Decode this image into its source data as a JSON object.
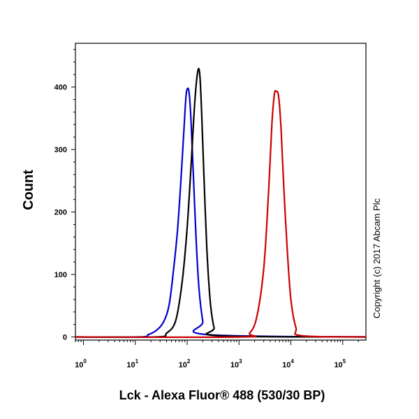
{
  "chart_data": {
    "type": "line",
    "title": "",
    "xlabel": "Lck - Alexa Fluor® 488 (530/30 BP)",
    "ylabel": "Count",
    "x_scale": "log",
    "xlim": [
      0.7,
      280000
    ],
    "ylim": [
      -5,
      470
    ],
    "grid": false,
    "legend": "none",
    "x_ticks": [
      {
        "base": "10",
        "exp": "0",
        "value": 1
      },
      {
        "base": "10",
        "exp": "1",
        "value": 10
      },
      {
        "base": "10",
        "exp": "2",
        "value": 100
      },
      {
        "base": "10",
        "exp": "3",
        "value": 1000
      },
      {
        "base": "10",
        "exp": "4",
        "value": 10000
      },
      {
        "base": "10",
        "exp": "5",
        "value": 100000
      }
    ],
    "y_ticks": [
      0,
      100,
      200,
      300,
      400
    ],
    "series": [
      {
        "color": "#0000cc",
        "x": [
          0.7,
          12,
          18,
          25,
          35,
          45,
          55,
          65,
          75,
          85,
          95,
          103,
          110,
          118,
          130,
          150,
          170,
          200,
          230,
          280000
        ],
        "y": [
          0,
          0,
          4,
          10,
          24,
          52,
          110,
          170,
          245,
          320,
          385,
          398,
          388,
          350,
          270,
          150,
          75,
          25,
          4,
          0
        ]
      },
      {
        "color": "#000000",
        "x": [
          0.7,
          25,
          40,
          60,
          80,
          100,
          120,
          140,
          160,
          175,
          190,
          210,
          240,
          280,
          330,
          400,
          280000
        ],
        "y": [
          0,
          0,
          6,
          26,
          88,
          175,
          280,
          375,
          425,
          420,
          360,
          260,
          140,
          55,
          15,
          2,
          0
        ]
      },
      {
        "color": "#cc0000",
        "x": [
          0.7,
          1100,
          1600,
          2200,
          3000,
          3700,
          4300,
          4800,
          5200,
          5800,
          6500,
          7300,
          8500,
          10000,
          12500,
          16000,
          280000
        ],
        "y": [
          0,
          0,
          6,
          32,
          110,
          230,
          340,
          388,
          393,
          385,
          330,
          240,
          140,
          60,
          15,
          2,
          0
        ]
      }
    ]
  },
  "copyright": "Copyright (c) 2017 Abcam Plc",
  "colors": {
    "background": "#ffffff",
    "axis": "#000000"
  }
}
